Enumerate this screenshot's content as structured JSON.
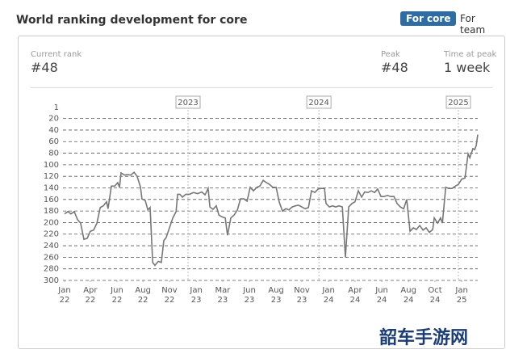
{
  "header": {
    "title": "World ranking development for core",
    "buttons": [
      "For core",
      "For team"
    ]
  },
  "stats": [
    {
      "label": "Current rank",
      "value": "#48"
    },
    {
      "label": "Peak",
      "value": "#48"
    },
    {
      "label": "Time at peak",
      "value": "1 week"
    }
  ],
  "watermark": "韶车手游网",
  "chart_data": {
    "type": "line",
    "y_inverted": true,
    "grid": true,
    "color": "#777777",
    "ylim": [
      1,
      300
    ],
    "yticks": [
      1,
      20,
      40,
      60,
      80,
      100,
      120,
      140,
      160,
      180,
      200,
      220,
      240,
      260,
      280,
      300
    ],
    "xlim": [
      0,
      162.3
    ],
    "xticks": [
      {
        "value": 0,
        "label": "Jan",
        "year": "22"
      },
      {
        "value": 10.1,
        "label": "Apr",
        "year": "22"
      },
      {
        "value": 20.6,
        "label": "Jun",
        "year": "22"
      },
      {
        "value": 30.8,
        "label": "Aug",
        "year": "22"
      },
      {
        "value": 41.2,
        "label": "Nov",
        "year": "22"
      },
      {
        "value": 51.7,
        "label": "Jan",
        "year": "23"
      },
      {
        "value": 62.1,
        "label": "Mar",
        "year": "23"
      },
      {
        "value": 72.6,
        "label": "Jun",
        "year": "23"
      },
      {
        "value": 83.1,
        "label": "Aug",
        "year": "23"
      },
      {
        "value": 93.2,
        "label": "Nov",
        "year": "23"
      },
      {
        "value": 103.7,
        "label": "Jan",
        "year": "24"
      },
      {
        "value": 114.1,
        "label": "Apr",
        "year": "24"
      },
      {
        "value": 124.6,
        "label": "Jun",
        "year": "24"
      },
      {
        "value": 135.1,
        "label": "Aug",
        "year": "24"
      },
      {
        "value": 145.5,
        "label": "Oct",
        "year": "24"
      },
      {
        "value": 156.0,
        "label": "Jan",
        "year": "25"
      }
    ],
    "year_markers": [
      {
        "value": 48.5,
        "label": "2023"
      },
      {
        "value": 99.9,
        "label": "2024"
      },
      {
        "value": 154.7,
        "label": "2025"
      }
    ],
    "x": [
      0,
      1.3,
      2.5,
      3.8,
      5.1,
      6.3,
      7.6,
      8.9,
      10.1,
      11.4,
      12.7,
      14.0,
      15.2,
      16.5,
      17.1,
      18.4,
      19.7,
      20.9,
      21.6,
      22.2,
      23.5,
      24.7,
      26.0,
      27.3,
      28.5,
      29.8,
      30.4,
      31.7,
      32.7,
      33.6,
      34.6,
      35.5,
      36.8,
      38.0,
      39.0,
      39.9,
      41.2,
      42.5,
      43.8,
      44.4,
      45.3,
      46.3,
      47.6,
      49.1,
      50.7,
      52.3,
      53.9,
      55.2,
      56.4,
      57.1,
      58.3,
      59.6,
      60.6,
      61.8,
      63.1,
      64.0,
      65.3,
      66.6,
      67.9,
      69.1,
      70.4,
      71.7,
      72.9,
      74.2,
      75.5,
      76.7,
      78.0,
      79.3,
      80.5,
      81.8,
      83.1,
      84.3,
      85.6,
      86.9,
      88.1,
      89.4,
      90.7,
      91.9,
      93.2,
      94.5,
      95.8,
      97.0,
      98.3,
      99.6,
      100.8,
      102.1,
      102.7,
      104.0,
      105.3,
      106.5,
      107.8,
      109.1,
      110.3,
      111.6,
      112.9,
      114.1,
      115.4,
      116.7,
      117.9,
      119.2,
      120.5,
      121.8,
      123.0,
      124.3,
      125.6,
      126.8,
      128.1,
      129.4,
      130.6,
      131.9,
      133.2,
      134.4,
      135.7,
      137.0,
      138.2,
      139.5,
      140.8,
      142.0,
      143.3,
      144.6,
      145.2,
      146.5,
      147.7,
      148.4,
      149.7,
      150.9,
      152.2,
      153.5,
      154.7,
      156.0,
      157.3,
      158.5,
      159.2,
      160.4,
      161.1,
      161.7,
      162.3
    ],
    "values": [
      185,
      181,
      185,
      181,
      195,
      201,
      229,
      227,
      215,
      213,
      201,
      174,
      171,
      164,
      176,
      137,
      137,
      131,
      139,
      114,
      118,
      117,
      118,
      113,
      120,
      138,
      159,
      162,
      178,
      174,
      269,
      274,
      267,
      269,
      231,
      226,
      209,
      192,
      181,
      151,
      151,
      156,
      151,
      151,
      148,
      150,
      147,
      152,
      141,
      173,
      177,
      171,
      187,
      190,
      192,
      222,
      192,
      187,
      178,
      159,
      159,
      163,
      139,
      145,
      139,
      137,
      127,
      131,
      134,
      139,
      139,
      164,
      180,
      176,
      178,
      173,
      171,
      170,
      173,
      176,
      174,
      145,
      148,
      142,
      141,
      141,
      167,
      173,
      171,
      173,
      171,
      173,
      260,
      173,
      167,
      164,
      145,
      156,
      147,
      148,
      145,
      148,
      142,
      155,
      155,
      153,
      155,
      155,
      167,
      173,
      176,
      160,
      215,
      209,
      212,
      205,
      213,
      209,
      217,
      212,
      192,
      201,
      192,
      201,
      139,
      141,
      141,
      137,
      134,
      125,
      123,
      81,
      88,
      72,
      74,
      67,
      48
    ]
  }
}
